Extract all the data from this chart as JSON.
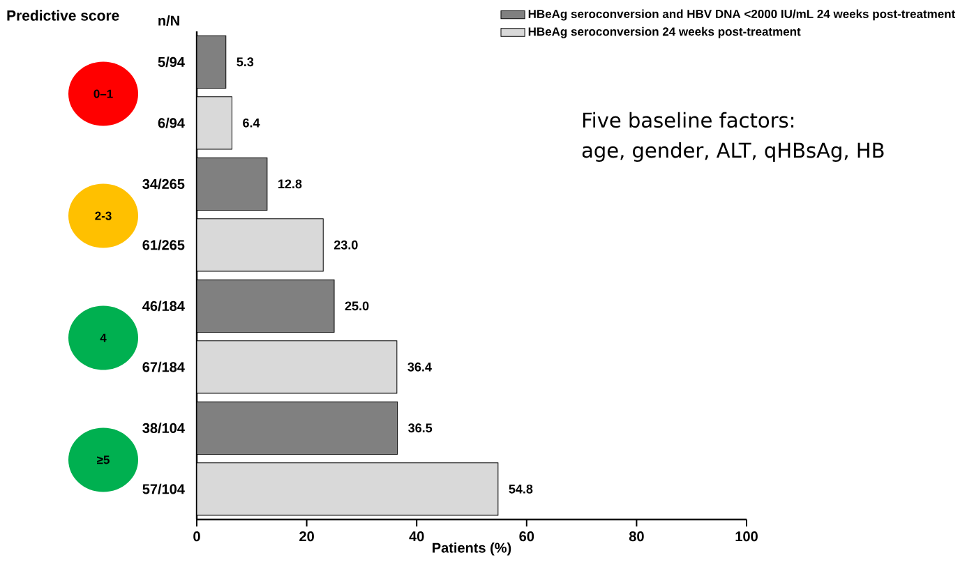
{
  "chart_data": {
    "type": "bar",
    "orientation": "horizontal",
    "xlabel": "Patients (%)",
    "categories": [
      "5/94",
      "6/94",
      "34/265",
      "61/265",
      "46/184",
      "67/184",
      "38/104",
      "57/104"
    ],
    "series": [
      {
        "name": "HBeAg seroconversion  and HBV DNA <2000 IU/mL 24 weeks post-treatment",
        "color": "#808080",
        "values": [
          5.3,
          null,
          12.8,
          null,
          25.0,
          null,
          36.5,
          null
        ],
        "value_labels": [
          "5.3",
          null,
          "12.8",
          null,
          "25.0",
          null,
          "36.5",
          null
        ]
      },
      {
        "name": "HBeAg seroconversion  24 weeks post-treatment",
        "color": "#d9d9d9",
        "values": [
          null,
          6.4,
          null,
          23.0,
          null,
          36.4,
          null,
          54.8
        ],
        "value_labels": [
          null,
          "6.4",
          null,
          "23.0",
          null,
          "36.4",
          null,
          "54.8"
        ]
      }
    ],
    "xlim": [
      0,
      100
    ],
    "xticks": [
      0,
      20,
      40,
      60,
      80,
      100
    ],
    "legend": "top right",
    "annotations": [
      "Predictive score",
      "0–1",
      "2-3",
      "4",
      "≥5",
      "Five baseline factors:",
      "age, gender, ALT, qHBsAg, HB",
      "n/N"
    ]
  }
}
